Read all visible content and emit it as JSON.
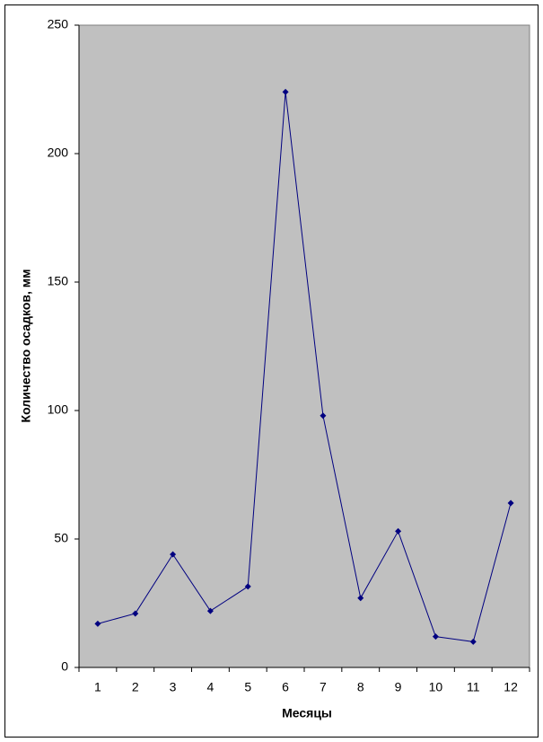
{
  "chart_data": {
    "type": "line",
    "x_label": "Месяцы",
    "y_label": "Количество осадков, мм",
    "categories": [
      "1",
      "2",
      "3",
      "4",
      "5",
      "6",
      "7",
      "8",
      "9",
      "10",
      "11",
      "12"
    ],
    "series": [
      {
        "color": "#000080",
        "values": [
          17,
          21,
          44,
          22,
          31.5,
          224,
          98,
          27,
          53,
          12,
          10,
          64
        ]
      }
    ],
    "ylim": [
      0,
      250
    ],
    "yticks": [
      0,
      50,
      100,
      150,
      200,
      250
    ],
    "plot_background": "#c0c0c0"
  }
}
